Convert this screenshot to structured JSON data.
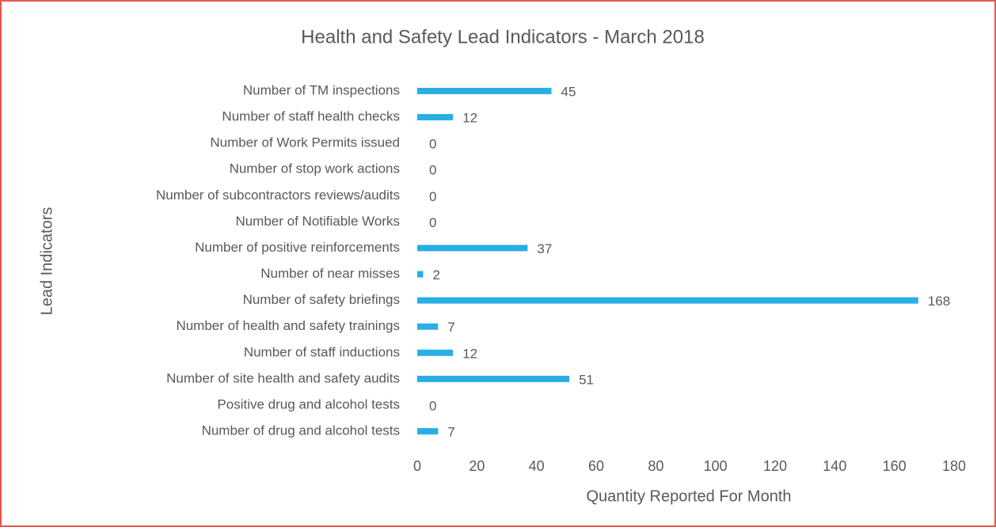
{
  "chart_data": {
    "type": "bar",
    "orientation": "horizontal",
    "title": "Health and Safety Lead Indicators - March 2018",
    "x_label": "Quantity Reported For Month",
    "y_label": "Lead Indicators",
    "categories": [
      "Number of TM inspections",
      "Number of staff health checks",
      "Number of Work Permits issued",
      "Number of stop work actions",
      "Number of subcontractors reviews/audits",
      "Number of Notifiable Works",
      "Number of positive reinforcements",
      "Number of near misses",
      "Number of safety briefings",
      "Number of health and safety trainings",
      "Number of staff inductions",
      "Number of site health and safety audits",
      "Positive drug and alcohol tests",
      "Number of drug and alcohol tests"
    ],
    "values": [
      45,
      12,
      0,
      0,
      0,
      0,
      37,
      2,
      168,
      7,
      12,
      51,
      0,
      7
    ],
    "color": "#29aee6",
    "xlim": [
      0,
      180
    ],
    "xticks": [
      0,
      20,
      40,
      60,
      80,
      100,
      120,
      140,
      160,
      180
    ],
    "grid": false
  }
}
